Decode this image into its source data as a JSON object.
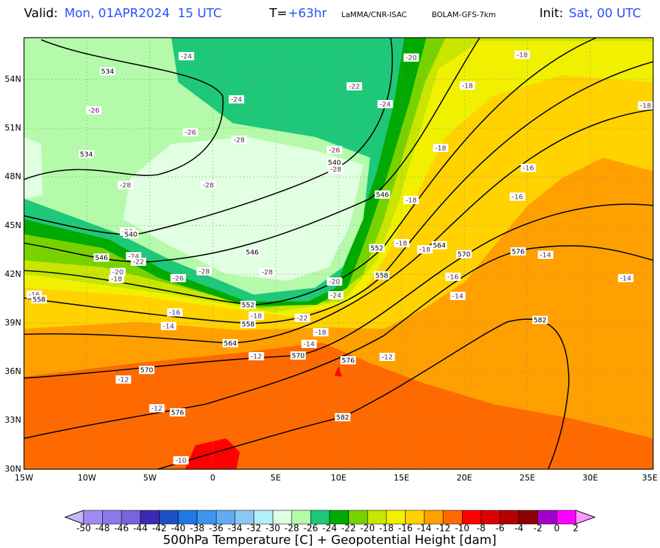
{
  "header": {
    "valid_label": "Valid:",
    "valid_time": "Mon, 01APR2024  15 UTC",
    "lead_label": "T=",
    "lead_time": "+63hr",
    "source": "LaMMA/CNR-ISAC",
    "model": "BOLAM-GFS-7km",
    "init_label": "Init:",
    "init_time": "Sat, 00 UTC"
  },
  "map": {
    "lat_labels": [
      "54N",
      "51N",
      "48N",
      "45N",
      "42N",
      "39N",
      "36N",
      "33N",
      "30N"
    ],
    "lon_labels": [
      "15W",
      "10W",
      "5W",
      "0",
      "5E",
      "10E",
      "15E",
      "20E",
      "25E",
      "30E",
      "35E"
    ],
    "temperature_labels": [
      "-24",
      "-20",
      "-18",
      "-22",
      "-18",
      "-24",
      "-24",
      "-18",
      "-26",
      "-26",
      "-28",
      "-26",
      "-18",
      "-28",
      "-16",
      "-28",
      "-28",
      "-18",
      "-16",
      "-26",
      "-24",
      "-22",
      "-18",
      "-18",
      "-14",
      "-20",
      "-18",
      "-28",
      "-28",
      "-26",
      "-16",
      "-14",
      "-20",
      "-24",
      "-16",
      "-14",
      "-18",
      "-16",
      "-22",
      "-14",
      "-18",
      "-14",
      "-12",
      "-12",
      "-12",
      "-12",
      "-10"
    ],
    "height_labels": [
      "534",
      "534",
      "540",
      "546",
      "540",
      "552",
      "564",
      "570",
      "576",
      "546",
      "546",
      "558",
      "558",
      "552",
      "558",
      "582",
      "564",
      "570",
      "576",
      "570",
      "576",
      "582"
    ]
  },
  "colorbar": {
    "labels": [
      -50,
      -48,
      -46,
      -44,
      -42,
      -40,
      -38,
      -36,
      -34,
      -32,
      -30,
      -28,
      -26,
      -24,
      -22,
      -20,
      -18,
      -16,
      -14,
      -12,
      -10,
      -8,
      -6,
      -4,
      -2,
      0,
      2
    ],
    "colors": [
      "#a08cf0",
      "#8c78e6",
      "#7864dc",
      "#3c28b4",
      "#1e50c8",
      "#1e78e6",
      "#3c96f0",
      "#64aaf0",
      "#8cc8f5",
      "#b4f0fa",
      "#e1ffe1",
      "#b4faaa",
      "#1ec878",
      "#00aa00",
      "#78d200",
      "#c8e600",
      "#f0f000",
      "#ffd200",
      "#ffa000",
      "#ff6a00",
      "#ff0000",
      "#dc0000",
      "#b40000",
      "#8c0000",
      "#a000c8",
      "#ff00ff"
    ],
    "under_color": "#c8b4fa",
    "over_color": "#ff96ff",
    "title": "500hPa Temperature [C] + Geopotential Height [dam]"
  }
}
